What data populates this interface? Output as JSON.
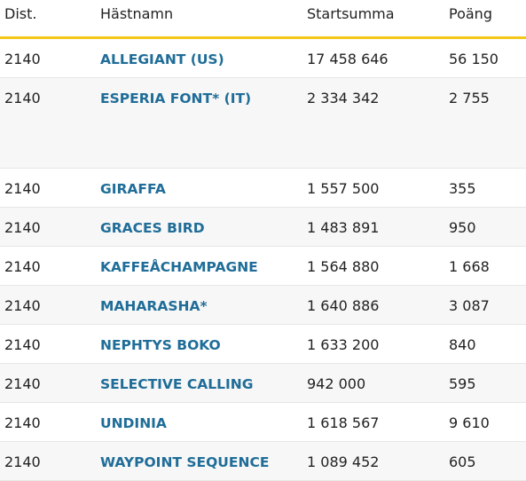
{
  "table": {
    "headers": [
      "Dist.",
      "Hästnamn",
      "Startsumma",
      "Poäng"
    ],
    "rows": [
      [
        "2140",
        "ALLEGIANT (US)",
        "17 458 646",
        "56 150"
      ],
      [
        "2140",
        "ESPERIA FONT* (IT)",
        "2 334 342",
        "2 755"
      ],
      [
        "2140",
        "GIRAFFA",
        "1 557 500",
        "355"
      ],
      [
        "2140",
        "GRACES BIRD",
        "1 483 891",
        "950"
      ],
      [
        "2140",
        "KAFFEÅCHAMPAGNE",
        "1 564 880",
        "1 668"
      ],
      [
        "2140",
        "MAHARASHA*",
        "1 640 886",
        "3 087"
      ],
      [
        "2140",
        "NEPHTYS BOKO",
        "1 633 200",
        "840"
      ],
      [
        "2140",
        "SELECTIVE CALLING",
        "942 000",
        "595"
      ],
      [
        "2140",
        "UNDINIA",
        "1 618 567",
        "9 610"
      ],
      [
        "2140",
        "WAYPOINT SEQUENCE",
        "1 089 452",
        "605"
      ]
    ]
  }
}
